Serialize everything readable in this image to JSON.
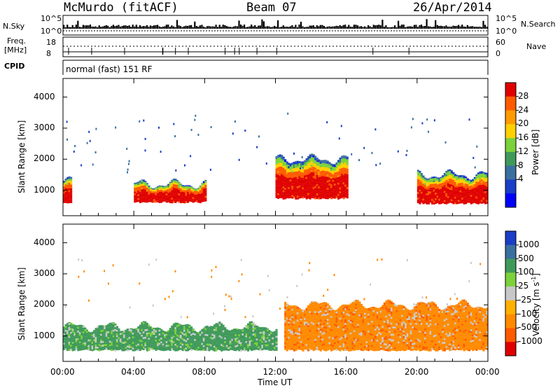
{
  "header": {
    "title": "McMurdo (fitACF)",
    "beam": "Beam 07",
    "date": "26/Apr/2014"
  },
  "aux": {
    "nsky_label": "N.Sky",
    "nsky_top": "10^5",
    "nsky_bottom": "10^0",
    "nsearch_label": "N.Search",
    "nsearch_top": "10^5",
    "nsearch_bottom": "10^0",
    "freq_label1": "Freq.",
    "freq_label2": "[MHz]",
    "freq_top": "18",
    "freq_bottom": "8",
    "nave_label": "Nave",
    "nave_top": "60",
    "nave_bottom": "0",
    "cpid_label": "CPID",
    "cpid_text": "normal (fast) 151 RF"
  },
  "chart_data": [
    {
      "type": "heatmap",
      "panel": "power",
      "xlabel": "Time UT",
      "ylabel": "Slant Range [km]",
      "x_ticks": [
        "00:00",
        "04:00",
        "08:00",
        "12:00",
        "16:00",
        "20:00",
        "00:00"
      ],
      "x_range_hours": [
        0,
        24
      ],
      "y_ticks": [
        1000,
        2000,
        3000,
        4000
      ],
      "y_range": [
        180,
        4600
      ],
      "colorbar": {
        "label": "Power [dB]",
        "ticks": [
          "28",
          "24",
          "20",
          "16",
          "12",
          "8",
          "4"
        ],
        "colors": [
          "#e00000",
          "#ff5a00",
          "#ff9a00",
          "#ffd000",
          "#7cd23a",
          "#3f9a5a",
          "#3a6fa0",
          "#1a3ec8",
          "#0000ff"
        ]
      },
      "bands": [
        {
          "t_start": 0.0,
          "t_end": 0.5,
          "lo_km": 560,
          "hi_km": 1300,
          "dominant": "Power ~20-28 dB"
        },
        {
          "t_start": 4.0,
          "t_end": 8.0,
          "lo_km": 580,
          "hi_km": 1200,
          "dominant": "Power ~28 dB"
        },
        {
          "t_start": 12.0,
          "t_end": 16.0,
          "lo_km": 700,
          "hi_km": 2000,
          "dominant": "Power ~12-28 dB"
        },
        {
          "t_start": 20.0,
          "t_end": 24.0,
          "lo_km": 540,
          "hi_km": 1500,
          "dominant": "Power ~16-28 dB"
        }
      ]
    },
    {
      "type": "heatmap",
      "panel": "velocity",
      "xlabel": "Time UT",
      "ylabel": "Slant Range [km]",
      "x_ticks": [
        "00:00",
        "04:00",
        "08:00",
        "12:00",
        "16:00",
        "20:00",
        "00:00"
      ],
      "x_range_hours": [
        0,
        24
      ],
      "y_ticks": [
        1000,
        2000,
        3000,
        4000
      ],
      "y_range": [
        180,
        4600
      ],
      "colorbar": {
        "label": "Velocity [m s",
        "label_sup": "-1",
        "label_end": "]",
        "ticks": [
          "1000",
          "500",
          "100",
          "25",
          "-25",
          "-100",
          "-500",
          "-1000"
        ],
        "colors": [
          "#1a3ec8",
          "#3a6fa0",
          "#3f9a5a",
          "#7cd23a",
          "#c8c8c8",
          "#ffb000",
          "#ff8a00",
          "#ff5a00",
          "#e00000"
        ]
      },
      "bands": [
        {
          "t_start": 0.0,
          "t_end": 12.0,
          "lo_km": 500,
          "hi_km": 1300,
          "dominant": "Velocity ~100 m/s (green)"
        },
        {
          "t_start": 12.5,
          "t_end": 24.0,
          "lo_km": 500,
          "hi_km": 2000,
          "dominant": "Velocity ~-100 m/s (orange)"
        }
      ]
    }
  ]
}
